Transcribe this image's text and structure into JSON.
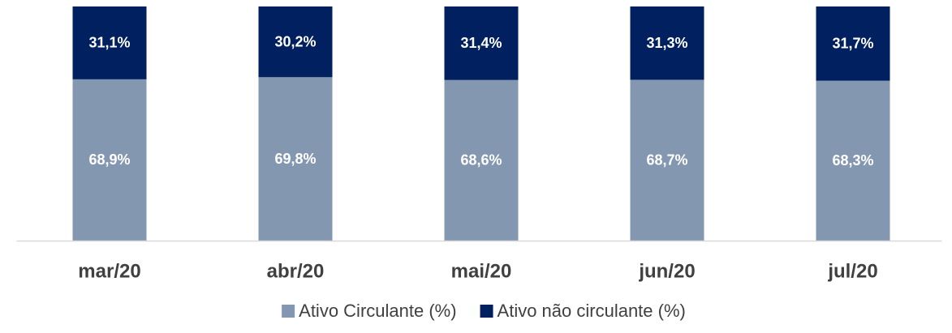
{
  "chart_data": {
    "type": "stacked_bar",
    "categories": [
      "mar/20",
      "abr/20",
      "mai/20",
      "jun/20",
      "jul/20"
    ],
    "series": [
      {
        "name": "Ativo Circulante (%)",
        "color": "#8497b0",
        "values": [
          68.9,
          69.8,
          68.6,
          68.7,
          68.3
        ],
        "value_labels": [
          "68,9%",
          "69,8%",
          "68,6%",
          "68,7%",
          "68,3%"
        ]
      },
      {
        "name": "Ativo não circulante (%)",
        "color": "#002060",
        "values": [
          31.1,
          30.2,
          31.4,
          31.3,
          31.7
        ],
        "value_labels": [
          "31,1%",
          "30,2%",
          "31,4%",
          "31,3%",
          "31,7%"
        ]
      }
    ],
    "ylim": [
      0,
      100
    ],
    "legend": "bottom"
  }
}
